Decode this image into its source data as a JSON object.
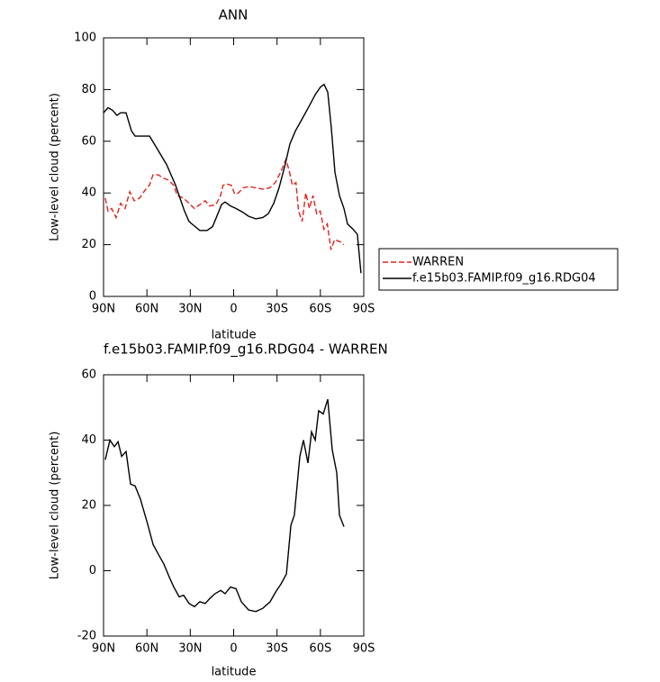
{
  "chart_data": [
    {
      "type": "line",
      "title": "ANN",
      "xlabel": "latitude",
      "ylabel": "Low-level cloud (percent)",
      "xlim": [
        90,
        -90
      ],
      "ylim": [
        0,
        100
      ],
      "xticks": [
        {
          "value": 90,
          "label": "90N"
        },
        {
          "value": 60,
          "label": "60N"
        },
        {
          "value": 30,
          "label": "30N"
        },
        0,
        {
          "value": -30,
          "label": "30S"
        },
        {
          "value": -60,
          "label": "60S"
        },
        {
          "value": -90,
          "label": "90S"
        }
      ],
      "yticks": [
        0,
        20,
        40,
        60,
        80,
        100
      ],
      "series": [
        {
          "name": "WARREN",
          "color": "#e8201c",
          "dash": true,
          "x": [
            88.8,
            86.9,
            84.4,
            81.3,
            78.2,
            75.1,
            71.9,
            68.8,
            65.1,
            61.4,
            58.3,
            55.8,
            52.0,
            49.6,
            45.2,
            41.5,
            39.0,
            34.6,
            30.9,
            27.2,
            23.4,
            19.7,
            16.6,
            12.2,
            9.1,
            7.3,
            4.8,
            1.7,
            -0.8,
            -3.3,
            -6.4,
            -10.7,
            -15.1,
            -20.1,
            -25.0,
            -28.8,
            -32.5,
            -36.2,
            -38.7,
            -40.6,
            -43.1,
            -44.9,
            -47.4,
            -49.9,
            -52.4,
            -54.9,
            -57.4,
            -59.9,
            -62.4,
            -64.8,
            -67.3,
            -69.8,
            -74.2,
            -76.1
          ],
          "values": [
            38,
            33,
            34,
            30.5,
            36,
            34,
            40.5,
            37,
            38,
            41,
            43,
            47,
            47,
            46,
            45,
            43,
            39,
            38,
            36,
            34,
            35.5,
            37,
            35,
            35.5,
            39,
            43,
            43.5,
            43,
            39.5,
            40,
            42,
            42.5,
            42,
            41.5,
            42,
            44,
            48,
            53,
            48,
            43,
            44,
            33,
            29,
            40,
            34,
            39,
            32,
            33,
            26,
            28,
            18,
            22,
            21,
            20
          ]
        },
        {
          "name": "f.e15b03.FAMIP.f09_g16.RDG04",
          "color": "#000000",
          "dash": false,
          "x": [
            90,
            86.9,
            83.8,
            80.7,
            78.2,
            74.4,
            70.7,
            68.2,
            65.1,
            58.2,
            53.9,
            46.4,
            40.2,
            37.1,
            34.0,
            30.9,
            27.7,
            23.4,
            18.4,
            14.6,
            10.9,
            8.4,
            5.9,
            2.2,
            -1.6,
            -6.5,
            -10.3,
            -15.3,
            -20.2,
            -24.0,
            -27.7,
            -31.4,
            -35.2,
            -38.9,
            -42.7,
            -47.7,
            -52.6,
            -56.4,
            -60.1,
            -62.6,
            -65.1,
            -67.6,
            -70.1,
            -73.2,
            -76.3,
            -78.8,
            -82.5,
            -85.6,
            -88.1
          ],
          "values": [
            71,
            73,
            72,
            70,
            71,
            71,
            64,
            62,
            62,
            62,
            58,
            51,
            43,
            38,
            33,
            29,
            27.5,
            25.5,
            25.5,
            27,
            32,
            35.5,
            36.5,
            35,
            34,
            32.5,
            31,
            30,
            30.5,
            32,
            36,
            42,
            50,
            59,
            64,
            69,
            74,
            78,
            81,
            82,
            79,
            65,
            48,
            39,
            34,
            28,
            26,
            24,
            9
          ]
        }
      ]
    },
    {
      "type": "line",
      "title": "f.e15b03.FAMIP.f09_g16.RDG04 - WARREN",
      "xlabel": "latitude",
      "ylabel": "Low-level cloud (percent)",
      "xlim": [
        90,
        -90
      ],
      "ylim": [
        -20,
        60
      ],
      "xticks": [
        {
          "value": 90,
          "label": "90N"
        },
        {
          "value": 60,
          "label": "60N"
        },
        {
          "value": 30,
          "label": "30N"
        },
        0,
        {
          "value": -30,
          "label": "30S"
        },
        {
          "value": -60,
          "label": "60S"
        },
        {
          "value": -90,
          "label": "90S"
        }
      ],
      "yticks": [
        -20,
        0,
        20,
        40,
        60
      ],
      "series": [
        {
          "name": "f.e15b03.FAMIP.f09_g16.RDG04 - WARREN",
          "color": "#000000",
          "dash": false,
          "x": [
            88.8,
            85.6,
            82.5,
            80.0,
            77.5,
            74.4,
            71.3,
            68.2,
            64.5,
            60.0,
            55.7,
            52.0,
            48.2,
            44.5,
            41.4,
            37.7,
            34.6,
            30.8,
            27.1,
            23.4,
            19.6,
            16.5,
            12.8,
            9.0,
            5.9,
            2.2,
            -1.6,
            -5.3,
            -10.3,
            -15.3,
            -20.2,
            -25.2,
            -29.0,
            -32.8,
            -36.5,
            -39.6,
            -42.0,
            -45.8,
            -48.3,
            -51.4,
            -53.9,
            -56.4,
            -58.8,
            -62.0,
            -65.1,
            -68.2,
            -71.3,
            -73.2,
            -76.3
          ],
          "values": [
            34,
            40,
            38,
            39.5,
            35,
            36.5,
            26.5,
            26,
            22,
            15,
            8,
            5,
            2,
            -2,
            -5,
            -8,
            -7.5,
            -10,
            -11,
            -9.5,
            -10,
            -8.5,
            -7,
            -6,
            -7,
            -5,
            -5.5,
            -9.5,
            -12,
            -12.5,
            -11.5,
            -9.5,
            -6.5,
            -4,
            -1,
            14,
            17,
            35,
            40,
            33,
            42.5,
            40,
            49,
            48,
            52.5,
            37,
            30,
            17,
            13.5
          ]
        }
      ]
    }
  ]
}
